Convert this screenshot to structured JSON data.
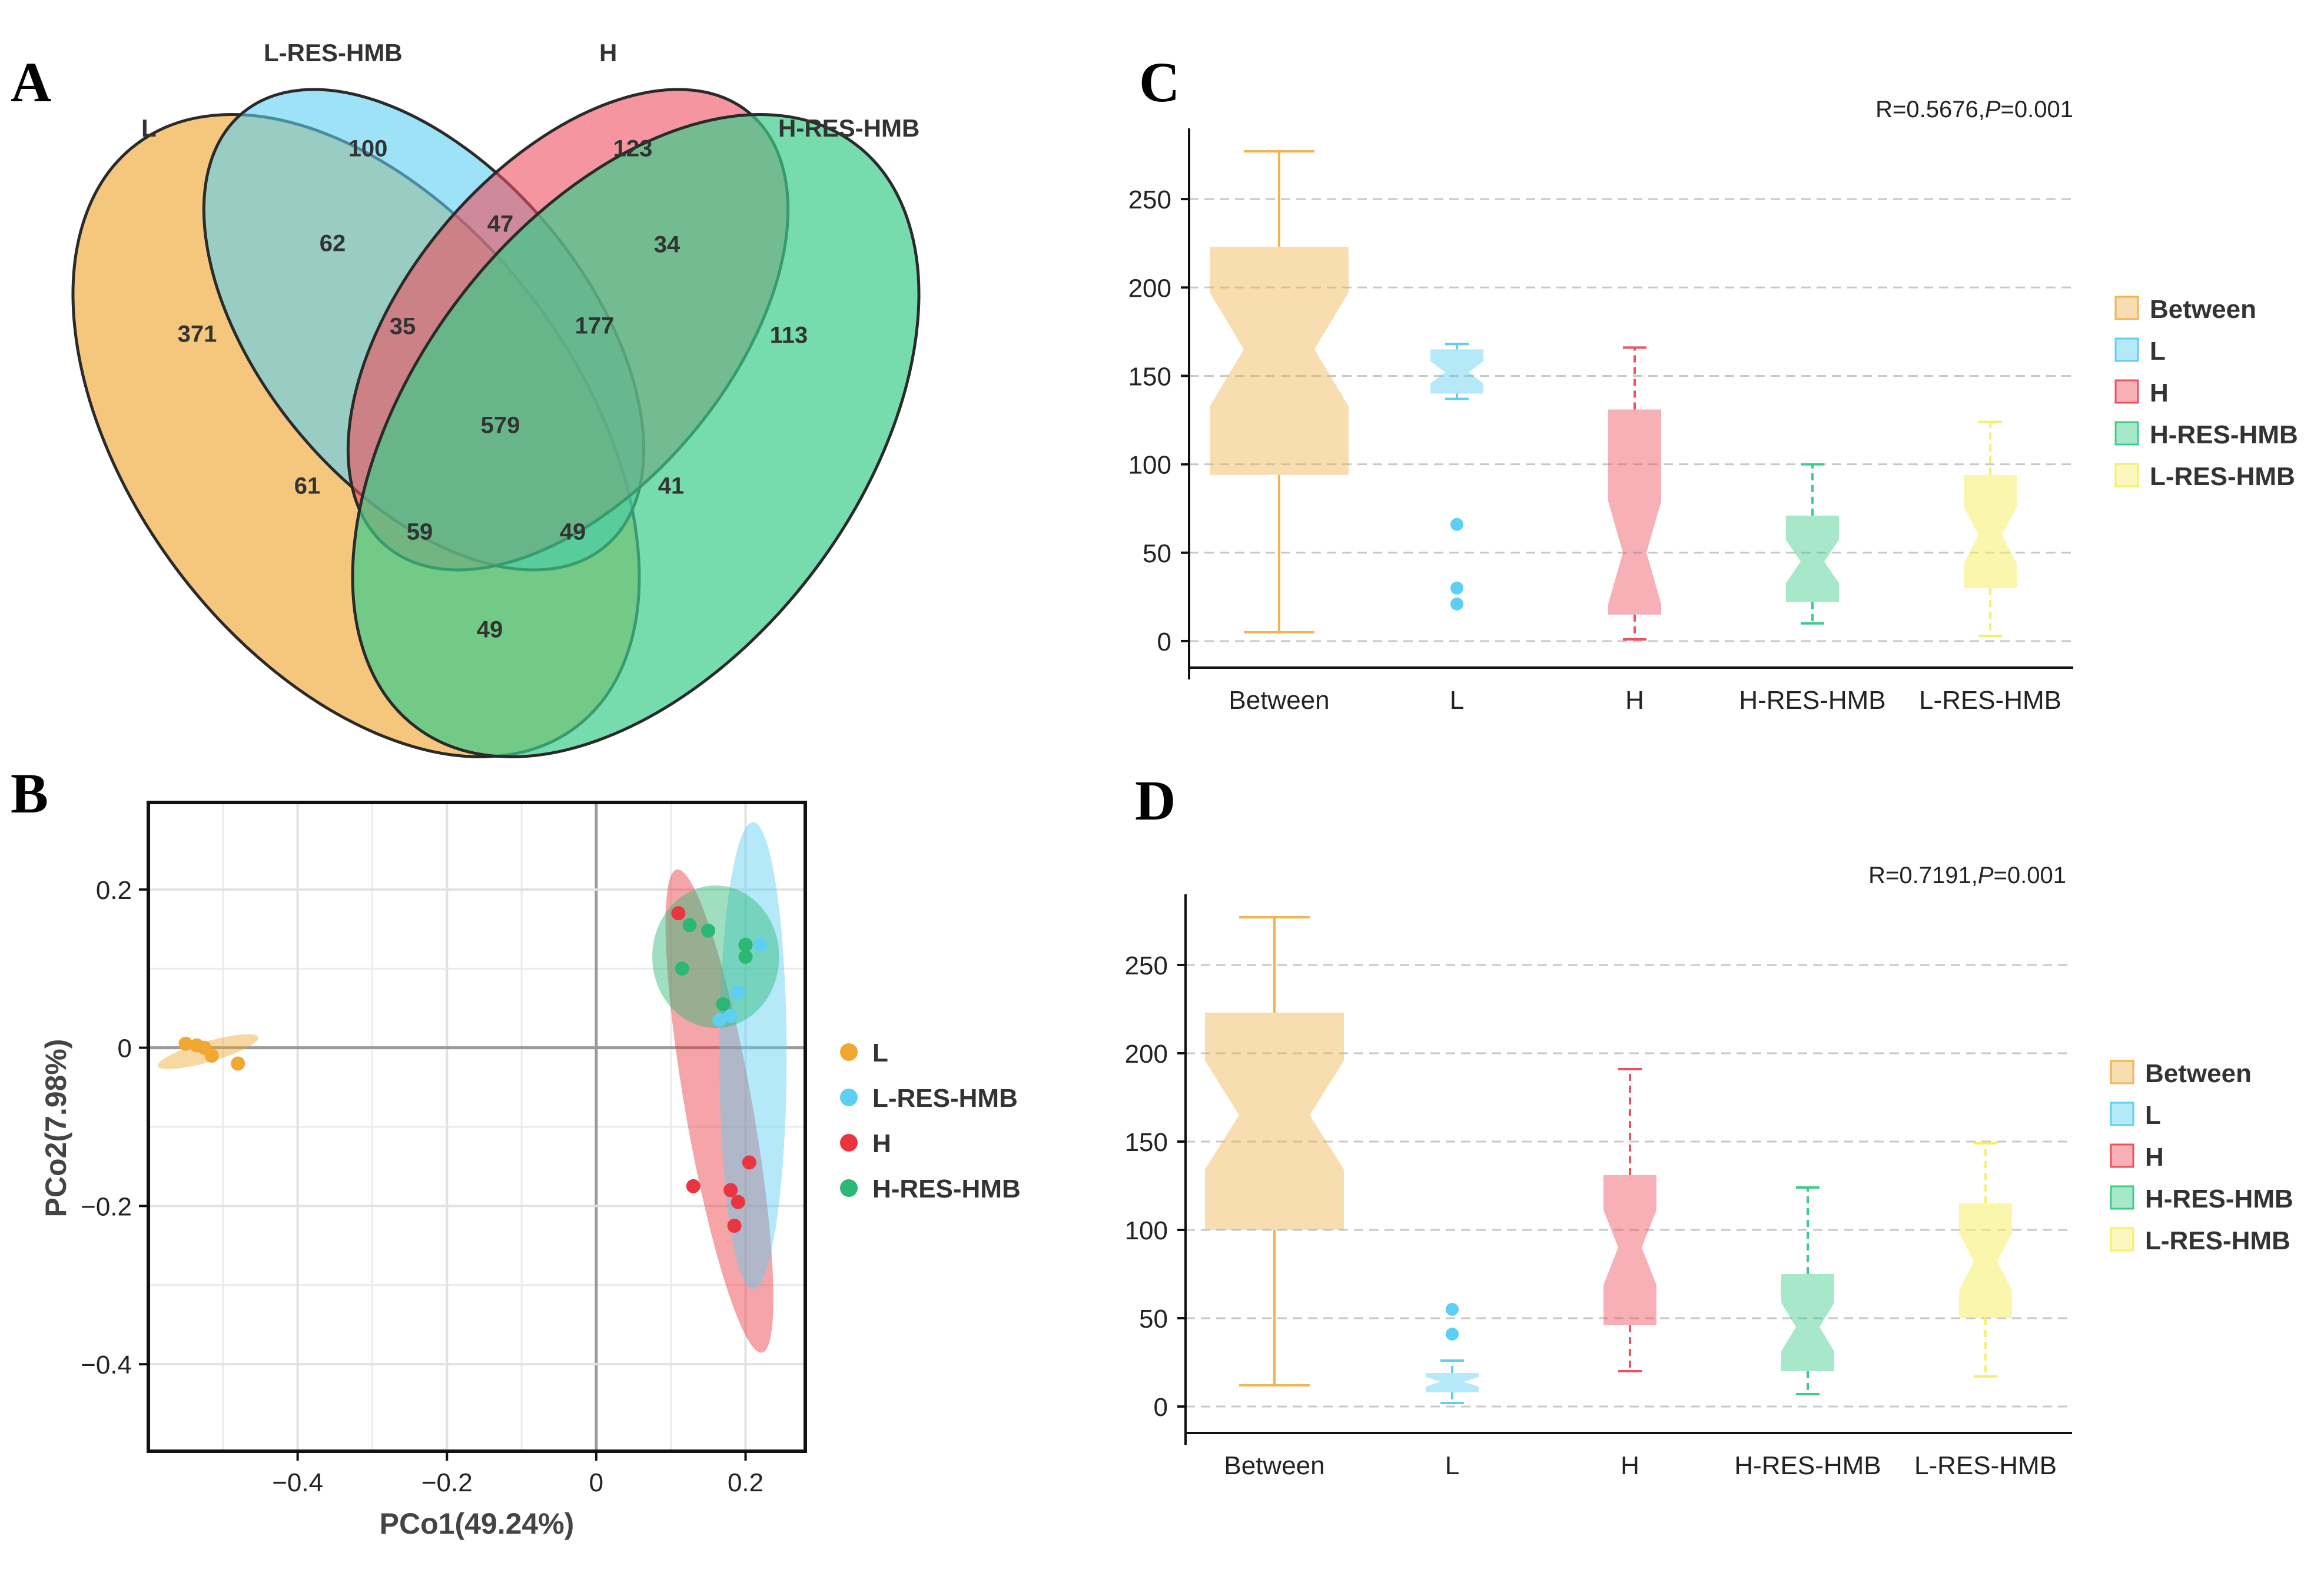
{
  "panels": {
    "a": "A",
    "b": "B",
    "c": "C",
    "d": "D"
  },
  "chart_data": [
    {
      "type": "venn",
      "id": "A",
      "sets": [
        {
          "name": "L",
          "color": "#f0b451"
        },
        {
          "name": "L-RES-HMB",
          "color": "#5ccff2"
        },
        {
          "name": "H",
          "color": "#ef4f5f"
        },
        {
          "name": "H-RES-HMB",
          "color": "#3ccc8a"
        }
      ],
      "regions": [
        {
          "sets": "L",
          "value": "371"
        },
        {
          "sets": "L-RES-HMB",
          "value": "100"
        },
        {
          "sets": "H",
          "value": "123"
        },
        {
          "sets": "H-RES-HMB",
          "value": "113"
        },
        {
          "sets": "L&L-RES-HMB",
          "value": "62"
        },
        {
          "sets": "L-RES-HMB&H",
          "value": "47"
        },
        {
          "sets": "H&H-RES-HMB",
          "value": "34"
        },
        {
          "sets": "L&L-RES-HMB&H",
          "value": "35"
        },
        {
          "sets": "L-RES-HMB&H&H-RES-HMB",
          "value": "177"
        },
        {
          "sets": "all",
          "value": "579"
        },
        {
          "sets": "L&H",
          "value": "61"
        },
        {
          "sets": "L-RES-HMB&H-RES-HMB",
          "value": "41"
        },
        {
          "sets": "L&H&H-RES-HMB",
          "value": "59"
        },
        {
          "sets": "L&L-RES-HMB&H-RES-HMB",
          "value": "49"
        },
        {
          "sets": "L&H-RES-HMB",
          "value": "49"
        }
      ]
    },
    {
      "type": "scatter",
      "id": "B",
      "xlabel": "PCo1(49.24%)",
      "ylabel": "PCo2(7.98%)",
      "xlim": [
        -0.6,
        0.28
      ],
      "ylim": [
        -0.51,
        0.31
      ],
      "xticks": [
        -0.4,
        -0.2,
        0,
        0.2
      ],
      "xtick_labels": [
        "−0.4",
        "−0.2",
        "0",
        "0.2"
      ],
      "yticks": [
        0.2,
        0,
        -0.2,
        -0.4
      ],
      "ytick_labels": [
        "0.2",
        "0",
        "−0.2",
        "−0.4"
      ],
      "series": [
        {
          "name": "L",
          "color": "#f0a830",
          "points": [
            [
              -0.55,
              0.005
            ],
            [
              -0.535,
              0.003
            ],
            [
              -0.525,
              0.0
            ],
            [
              -0.515,
              -0.01
            ],
            [
              -0.48,
              -0.02
            ]
          ],
          "ellipse": {
            "cx": -0.52,
            "cy": -0.005,
            "rx": 0.07,
            "ry": 0.013,
            "angle_deg": -16
          }
        },
        {
          "name": "L-RES-HMB",
          "color": "#5ccff2",
          "points": [
            [
              0.22,
              0.13
            ],
            [
              0.19,
              0.07
            ],
            [
              0.18,
              0.04
            ],
            [
              0.165,
              0.035
            ]
          ],
          "ellipse": {
            "cx": 0.21,
            "cy": -0.01,
            "rx": 0.045,
            "ry": 0.295,
            "angle_deg": 0
          }
        },
        {
          "name": "H",
          "color": "#e8353f",
          "points": [
            [
              0.11,
              0.17
            ],
            [
              0.205,
              -0.145
            ],
            [
              0.13,
              -0.175
            ],
            [
              0.18,
              -0.18
            ],
            [
              0.19,
              -0.195
            ],
            [
              0.185,
              -0.225
            ]
          ],
          "ellipse": {
            "cx": 0.165,
            "cy": -0.08,
            "rx": 0.045,
            "ry": 0.31,
            "angle_deg": -10
          }
        },
        {
          "name": "H-RES-HMB",
          "color": "#2ab874",
          "points": [
            [
              0.125,
              0.155
            ],
            [
              0.15,
              0.148
            ],
            [
              0.2,
              0.13
            ],
            [
              0.2,
              0.115
            ],
            [
              0.115,
              0.1
            ],
            [
              0.17,
              0.055
            ]
          ],
          "ellipse": {
            "cx": 0.16,
            "cy": 0.115,
            "rx": 0.085,
            "ry": 0.09,
            "angle_deg": 0
          }
        }
      ]
    },
    {
      "type": "boxplot",
      "id": "C",
      "annotation_r": "R=0.5676,",
      "annotation_p_label": "P",
      "annotation_p_value": "=0.001",
      "ylim": [
        -15,
        290
      ],
      "yticks": [
        0,
        50,
        100,
        150,
        200,
        250
      ],
      "categories": [
        "Between",
        "L",
        "H",
        "H-RES-HMB",
        "L-RES-HMB"
      ],
      "colors": [
        "#f0b451",
        "#5ccff2",
        "#ef4f5f",
        "#3ccc8a",
        "#f5f06a"
      ],
      "boxes": [
        {
          "name": "Between",
          "min": 5,
          "q1": 94,
          "median": 165,
          "q3": 223,
          "max": 277,
          "outliers": []
        },
        {
          "name": "L",
          "min": 137,
          "q1": 140,
          "median": 152,
          "q3": 165,
          "max": 168,
          "outliers": [
            66,
            30,
            21
          ]
        },
        {
          "name": "H",
          "min": 1,
          "q1": 15,
          "median": 50,
          "q3": 131,
          "max": 166,
          "outliers": []
        },
        {
          "name": "H-RES-HMB",
          "min": 10,
          "q1": 22,
          "median": 45,
          "q3": 71,
          "max": 100,
          "outliers": []
        },
        {
          "name": "L-RES-HMB",
          "min": 3,
          "q1": 30,
          "median": 60,
          "q3": 94,
          "max": 124,
          "outliers": []
        }
      ],
      "legend": [
        "Between",
        "L",
        "H",
        "H-RES-HMB",
        "L-RES-HMB"
      ]
    },
    {
      "type": "boxplot",
      "id": "D",
      "annotation_r": "R=0.7191,",
      "annotation_p_label": "P",
      "annotation_p_value": "=0.001",
      "ylim": [
        -15,
        290
      ],
      "yticks": [
        0,
        50,
        100,
        150,
        200,
        250
      ],
      "categories": [
        "Between",
        "L",
        "H",
        "H-RES-HMB",
        "L-RES-HMB"
      ],
      "colors": [
        "#f0b451",
        "#5ccff2",
        "#ef4f5f",
        "#3ccc8a",
        "#f5f06a"
      ],
      "boxes": [
        {
          "name": "Between",
          "min": 12,
          "q1": 100,
          "median": 165,
          "q3": 223,
          "max": 277,
          "outliers": []
        },
        {
          "name": "L",
          "min": 2,
          "q1": 8,
          "median": 14,
          "q3": 19,
          "max": 26,
          "outliers": [
            55,
            41
          ]
        },
        {
          "name": "H",
          "min": 20,
          "q1": 46,
          "median": 90,
          "q3": 131,
          "max": 191,
          "outliers": []
        },
        {
          "name": "H-RES-HMB",
          "min": 7,
          "q1": 20,
          "median": 45,
          "q3": 75,
          "max": 124,
          "outliers": []
        },
        {
          "name": "L-RES-HMB",
          "min": 17,
          "q1": 50,
          "median": 82,
          "q3": 115,
          "max": 149,
          "outliers": []
        }
      ],
      "legend": [
        "Between",
        "L",
        "H",
        "H-RES-HMB",
        "L-RES-HMB"
      ]
    }
  ]
}
